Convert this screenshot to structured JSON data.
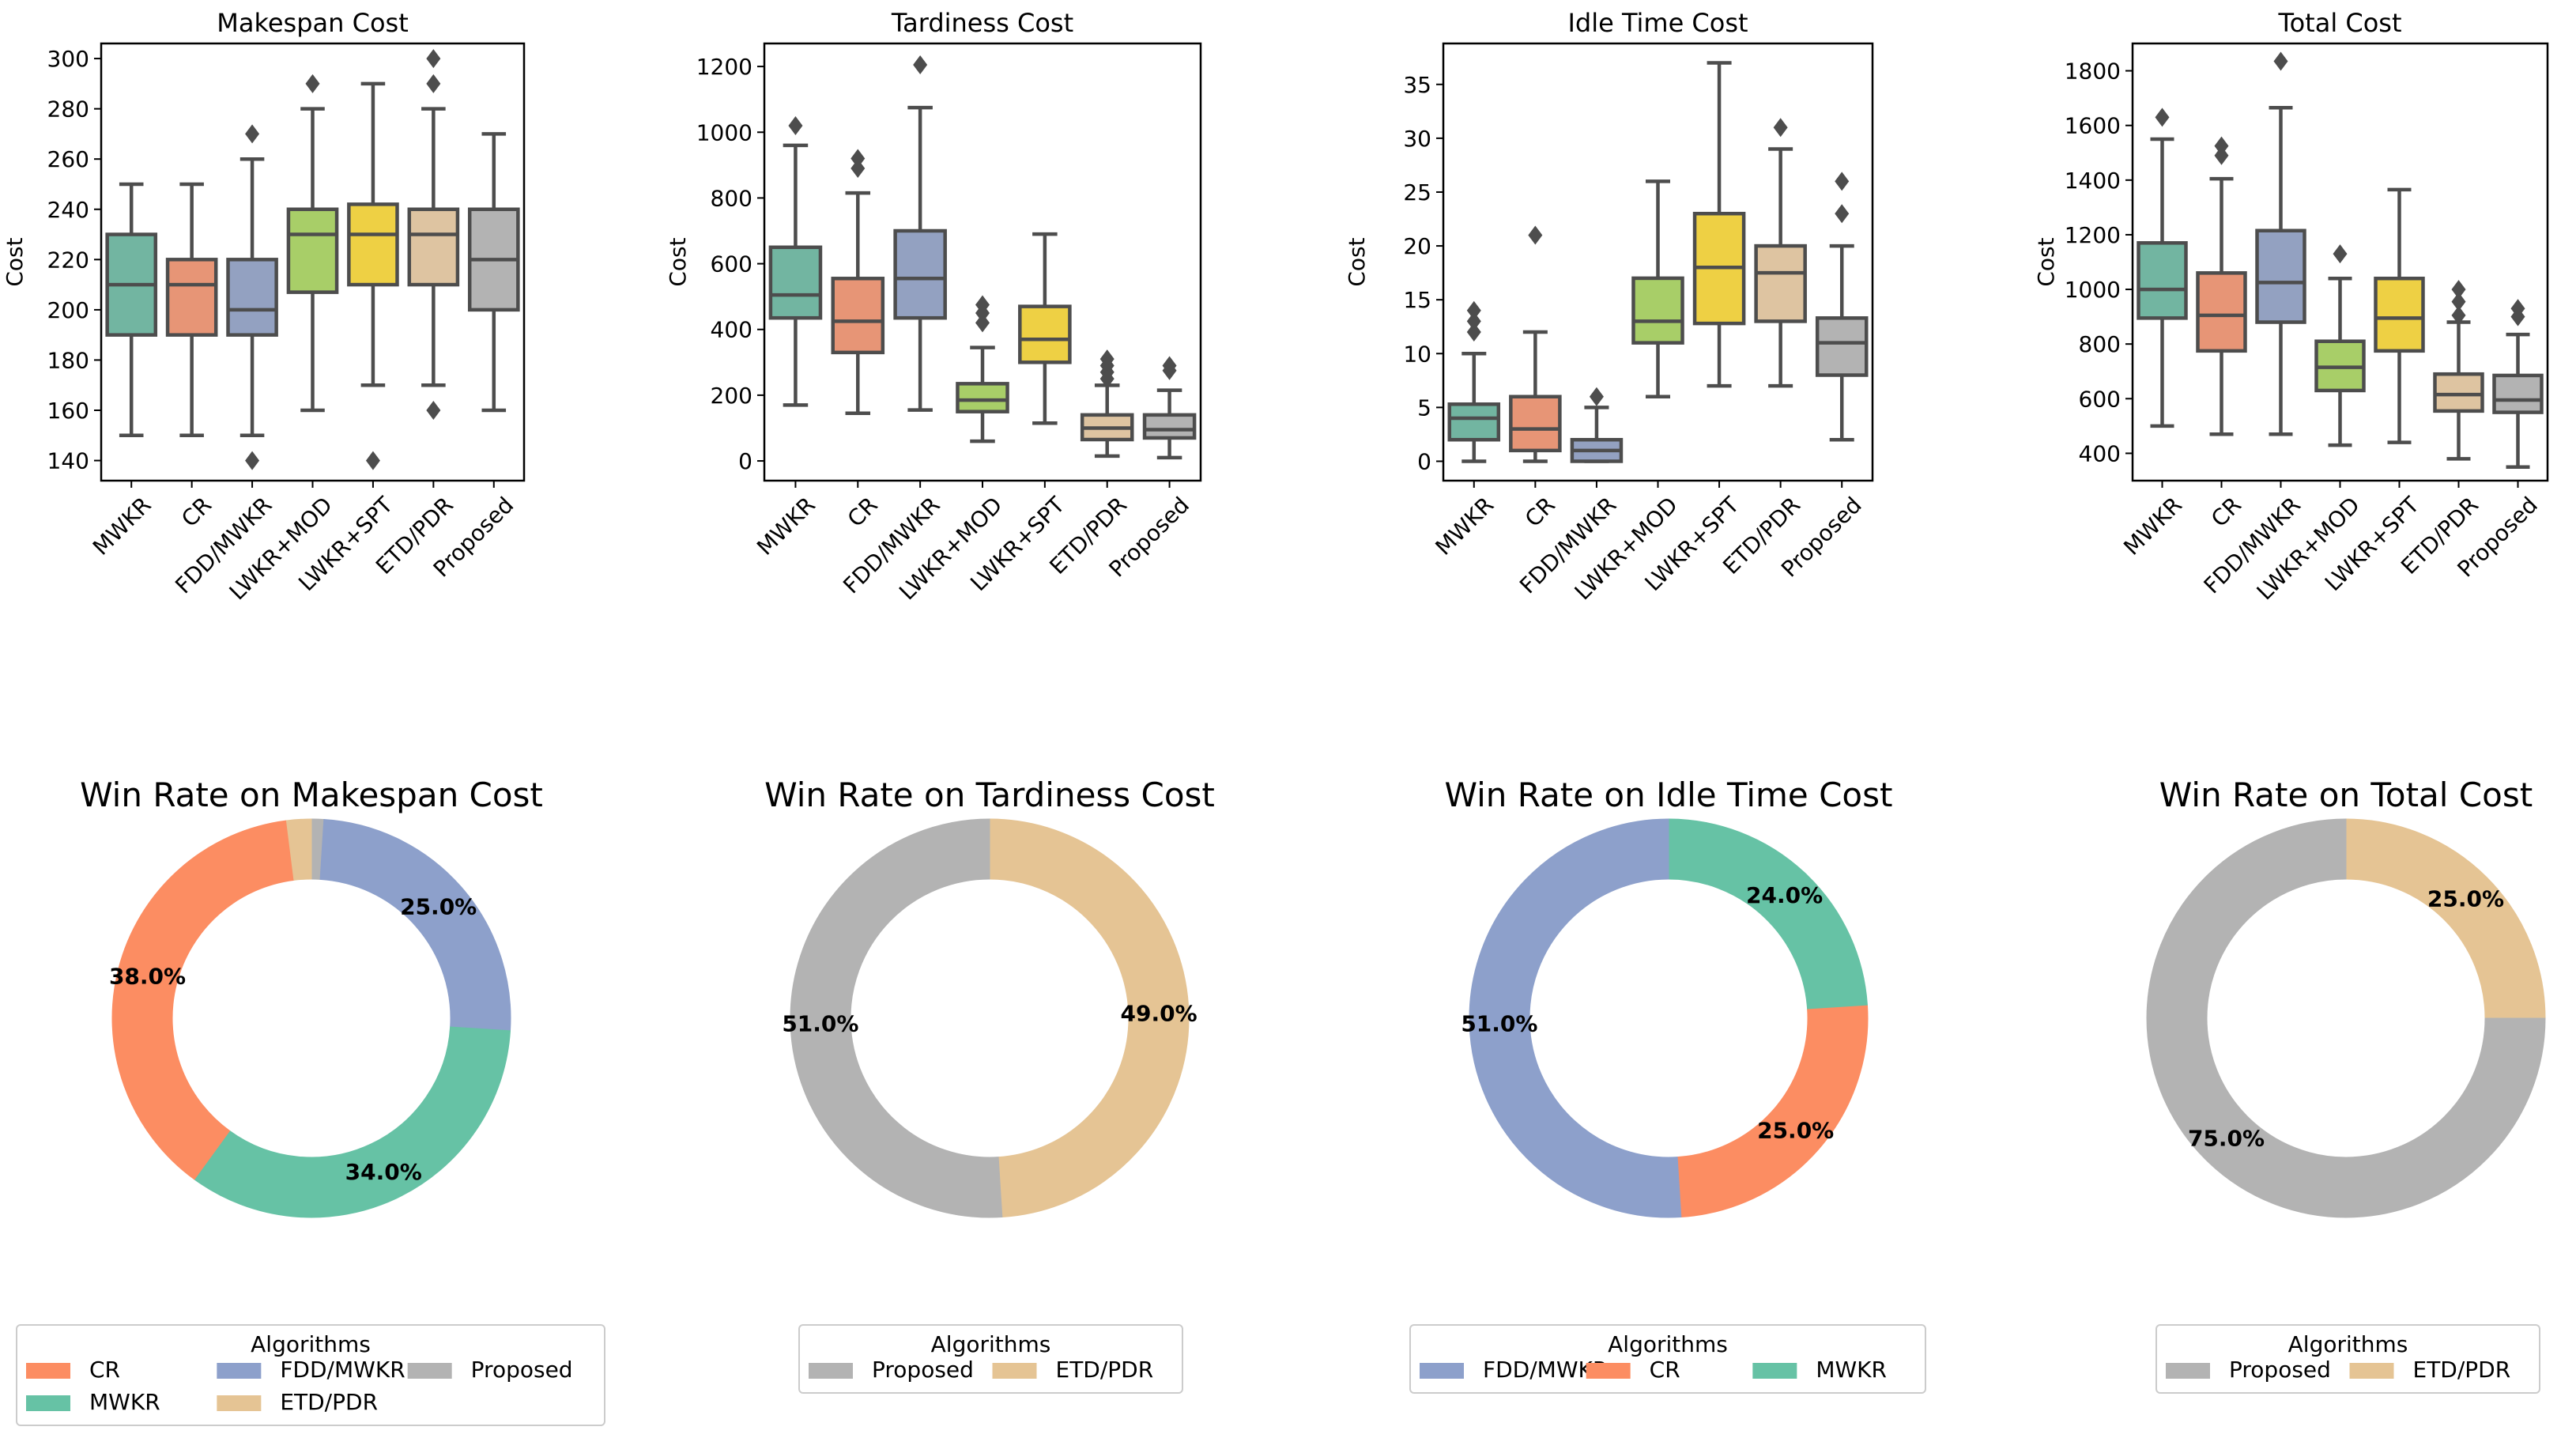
{
  "colors": {
    "MWKR": "#66c2a5",
    "CR": "#fc8d62",
    "FDD/MWKR": "#8da0cb",
    "LWKR+MOD": "#a6d854",
    "LWKR+SPT": "#ffd92f",
    "ETD/PDR": "#e5c494",
    "Proposed": "#b3b3b3",
    "box_desat": {
      "MWKR": "#72b5a1",
      "CR": "#e79576",
      "FDD/MWKR": "#93a1c1",
      "LWKR+MOD": "#a8ce68",
      "LWKR+SPT": "#eed044",
      "ETD/PDR": "#dec4a1",
      "Proposed": "#b3b3b3"
    },
    "line": "#4d4d4d"
  },
  "chart_data": [
    {
      "type": "box",
      "title": "Makespan Cost",
      "xlabel": "",
      "ylabel": "Cost",
      "ylim": [
        132,
        306
      ],
      "yticks": [
        140,
        160,
        180,
        200,
        220,
        240,
        260,
        280,
        300
      ],
      "categories": [
        "MWKR",
        "CR",
        "FDD/MWKR",
        "LWKR+MOD",
        "LWKR+SPT",
        "ETD/PDR",
        "Proposed"
      ],
      "boxes": [
        {
          "name": "MWKR",
          "whislo": 150,
          "q1": 190,
          "med": 210,
          "q3": 230,
          "whishi": 250,
          "fliers": []
        },
        {
          "name": "CR",
          "whislo": 150,
          "q1": 190,
          "med": 210,
          "q3": 220,
          "whishi": 250,
          "fliers": []
        },
        {
          "name": "FDD/MWKR",
          "whislo": 150,
          "q1": 190,
          "med": 200,
          "q3": 220,
          "whishi": 260,
          "fliers": [
            270,
            140
          ]
        },
        {
          "name": "LWKR+MOD",
          "whislo": 160,
          "q1": 207,
          "med": 230,
          "q3": 240,
          "whishi": 280,
          "fliers": [
            290
          ]
        },
        {
          "name": "LWKR+SPT",
          "whislo": 170,
          "q1": 210,
          "med": 230,
          "q3": 242,
          "whishi": 290,
          "fliers": [
            140
          ]
        },
        {
          "name": "ETD/PDR",
          "whislo": 170,
          "q1": 210,
          "med": 230,
          "q3": 240,
          "whishi": 280,
          "fliers": [
            300,
            290,
            160
          ]
        },
        {
          "name": "Proposed",
          "whislo": 160,
          "q1": 200,
          "med": 220,
          "q3": 240,
          "whishi": 270,
          "fliers": []
        }
      ]
    },
    {
      "type": "box",
      "title": "Tardiness Cost",
      "xlabel": "",
      "ylabel": "Cost",
      "ylim": [
        -60,
        1270
      ],
      "yticks": [
        0,
        200,
        400,
        600,
        800,
        1000,
        1200
      ],
      "categories": [
        "MWKR",
        "CR",
        "FDD/MWKR",
        "LWKR+MOD",
        "LWKR+SPT",
        "ETD/PDR",
        "Proposed"
      ],
      "boxes": [
        {
          "name": "MWKR",
          "whislo": 170,
          "q1": 435,
          "med": 505,
          "q3": 650,
          "whishi": 960,
          "fliers": [
            1020
          ]
        },
        {
          "name": "CR",
          "whislo": 145,
          "q1": 330,
          "med": 425,
          "q3": 555,
          "whishi": 815,
          "fliers": [
            920,
            890
          ]
        },
        {
          "name": "FDD/MWKR",
          "whislo": 155,
          "q1": 435,
          "med": 555,
          "q3": 700,
          "whishi": 1075,
          "fliers": [
            1205
          ]
        },
        {
          "name": "LWKR+MOD",
          "whislo": 60,
          "q1": 150,
          "med": 185,
          "q3": 235,
          "whishi": 345,
          "fliers": [
            475,
            450,
            420
          ]
        },
        {
          "name": "LWKR+SPT",
          "whislo": 115,
          "q1": 300,
          "med": 370,
          "q3": 470,
          "whishi": 690,
          "fliers": []
        },
        {
          "name": "ETD/PDR",
          "whislo": 15,
          "q1": 65,
          "med": 100,
          "q3": 140,
          "whishi": 230,
          "fliers": [
            310,
            290,
            270,
            250
          ]
        },
        {
          "name": "Proposed",
          "whislo": 10,
          "q1": 70,
          "med": 95,
          "q3": 140,
          "whishi": 215,
          "fliers": [
            290,
            275
          ]
        }
      ]
    },
    {
      "type": "box",
      "title": "Idle Time Cost",
      "xlabel": "",
      "ylabel": "Cost",
      "ylim": [
        -1.8,
        38.8
      ],
      "yticks": [
        0,
        5,
        10,
        15,
        20,
        25,
        30,
        35
      ],
      "categories": [
        "MWKR",
        "CR",
        "FDD/MWKR",
        "LWKR+MOD",
        "LWKR+SPT",
        "ETD/PDR",
        "Proposed"
      ],
      "boxes": [
        {
          "name": "MWKR",
          "whislo": 0,
          "q1": 2,
          "med": 4,
          "q3": 5.3,
          "whishi": 10,
          "fliers": [
            14,
            13,
            12
          ]
        },
        {
          "name": "CR",
          "whislo": 0,
          "q1": 1,
          "med": 3,
          "q3": 6,
          "whishi": 12,
          "fliers": [
            21
          ]
        },
        {
          "name": "FDD/MWKR",
          "whislo": 0,
          "q1": 0,
          "med": 1,
          "q3": 2,
          "whishi": 5,
          "fliers": [
            6
          ]
        },
        {
          "name": "LWKR+MOD",
          "whislo": 6,
          "q1": 11,
          "med": 13,
          "q3": 17,
          "whishi": 26,
          "fliers": []
        },
        {
          "name": "LWKR+SPT",
          "whislo": 7,
          "q1": 12.8,
          "med": 18,
          "q3": 23,
          "whishi": 37,
          "fliers": []
        },
        {
          "name": "ETD/PDR",
          "whislo": 7,
          "q1": 13,
          "med": 17.5,
          "q3": 20,
          "whishi": 29,
          "fliers": [
            31
          ]
        },
        {
          "name": "Proposed",
          "whislo": 2,
          "q1": 8,
          "med": 11,
          "q3": 13.3,
          "whishi": 20,
          "fliers": [
            26,
            23
          ]
        }
      ]
    },
    {
      "type": "box",
      "title": "Total Cost",
      "xlabel": "",
      "ylabel": "Cost",
      "ylim": [
        300,
        1900
      ],
      "yticks": [
        400,
        600,
        800,
        1000,
        1200,
        1400,
        1600,
        1800
      ],
      "categories": [
        "MWKR",
        "CR",
        "FDD/MWKR",
        "LWKR+MOD",
        "LWKR+SPT",
        "ETD/PDR",
        "Proposed"
      ],
      "boxes": [
        {
          "name": "MWKR",
          "whislo": 500,
          "q1": 895,
          "med": 1000,
          "q3": 1170,
          "whishi": 1550,
          "fliers": [
            1630
          ]
        },
        {
          "name": "CR",
          "whislo": 470,
          "q1": 775,
          "med": 905,
          "q3": 1060,
          "whishi": 1405,
          "fliers": [
            1525,
            1490
          ]
        },
        {
          "name": "FDD/MWKR",
          "whislo": 470,
          "q1": 880,
          "med": 1025,
          "q3": 1215,
          "whishi": 1665,
          "fliers": [
            1835
          ]
        },
        {
          "name": "LWKR+MOD",
          "whislo": 430,
          "q1": 630,
          "med": 715,
          "q3": 810,
          "whishi": 1040,
          "fliers": [
            1130
          ]
        },
        {
          "name": "LWKR+SPT",
          "whislo": 440,
          "q1": 775,
          "med": 895,
          "q3": 1040,
          "whishi": 1365,
          "fliers": []
        },
        {
          "name": "ETD/PDR",
          "whislo": 380,
          "q1": 555,
          "med": 615,
          "q3": 690,
          "whishi": 880,
          "fliers": [
            1000,
            955,
            905
          ]
        },
        {
          "name": "Proposed",
          "whislo": 350,
          "q1": 550,
          "med": 595,
          "q3": 685,
          "whishi": 835,
          "fliers": [
            930,
            900
          ]
        }
      ]
    },
    {
      "type": "pie",
      "title": "Win Rate on Makespan Cost",
      "slices": [
        {
          "label": "Proposed",
          "value": 1.0,
          "pct_label": ""
        },
        {
          "label": "FDD/MWKR",
          "value": 25.0,
          "pct_label": "25.0%"
        },
        {
          "label": "MWKR",
          "value": 34.0,
          "pct_label": "34.0%"
        },
        {
          "label": "CR",
          "value": 38.0,
          "pct_label": "38.0%"
        },
        {
          "label": "ETD/PDR",
          "value": 2.0,
          "pct_label": ""
        }
      ],
      "legend": {
        "title": "Algorithms",
        "columns": 3,
        "entries": [
          "CR",
          "MWKR",
          "FDD/MWKR",
          "ETD/PDR",
          "Proposed"
        ]
      }
    },
    {
      "type": "pie",
      "title": "Win Rate on Tardiness Cost",
      "slices": [
        {
          "label": "ETD/PDR",
          "value": 49.0,
          "pct_label": "49.0%"
        },
        {
          "label": "Proposed",
          "value": 51.0,
          "pct_label": "51.0%"
        }
      ],
      "legend": {
        "title": "Algorithms",
        "columns": 2,
        "entries": [
          "Proposed",
          "ETD/PDR"
        ]
      }
    },
    {
      "type": "pie",
      "title": "Win Rate on Idle Time Cost",
      "slices": [
        {
          "label": "MWKR",
          "value": 24.0,
          "pct_label": "24.0%"
        },
        {
          "label": "CR",
          "value": 25.0,
          "pct_label": "25.0%"
        },
        {
          "label": "FDD/MWKR",
          "value": 51.0,
          "pct_label": "51.0%"
        }
      ],
      "legend": {
        "title": "Algorithms",
        "columns": 3,
        "entries": [
          "FDD/MWKR",
          "CR",
          "MWKR"
        ]
      }
    },
    {
      "type": "pie",
      "title": "Win Rate on Total Cost",
      "slices": [
        {
          "label": "ETD/PDR",
          "value": 25.0,
          "pct_label": "25.0%"
        },
        {
          "label": "Proposed",
          "value": 75.0,
          "pct_label": "75.0%"
        }
      ],
      "legend": {
        "title": "Algorithms",
        "columns": 2,
        "entries": [
          "Proposed",
          "ETD/PDR"
        ]
      }
    }
  ]
}
